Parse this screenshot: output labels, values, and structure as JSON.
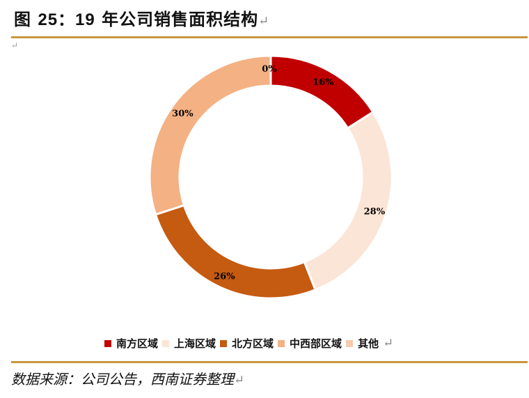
{
  "header": {
    "title_prefix": "图",
    "title_number": "25：19",
    "title_text": "年公司销售面积结构",
    "pilcrow": "↵"
  },
  "footer": {
    "source": "数据来源：公司公告，西南证券整理",
    "pilcrow": "↵"
  },
  "colors": {
    "rule": "#C8963E"
  },
  "chart_data": {
    "type": "pie",
    "subtype": "donut",
    "title": "19年公司销售面积结构",
    "categories": [
      "南方区域",
      "上海区域",
      "北方区域",
      "中西部区域",
      "其他"
    ],
    "values": [
      16,
      28,
      26,
      30,
      0
    ],
    "labels": [
      "16%",
      "28%",
      "26%",
      "30%",
      "0%"
    ],
    "colors": [
      "#C00000",
      "#FBE5D6",
      "#C55A11",
      "#F4B183",
      "#F8CBAD"
    ],
    "unit": "%",
    "legend_position": "bottom",
    "start_angle": "top, clockwise"
  },
  "legend": [
    {
      "label": "南方区域",
      "color": "#C00000"
    },
    {
      "label": "上海区域",
      "color": "#FBE5D6"
    },
    {
      "label": "北方区域",
      "color": "#C55A11"
    },
    {
      "label": "中西部区域",
      "color": "#F4B183"
    },
    {
      "label": "其他",
      "color": "#F8CBAD"
    }
  ]
}
